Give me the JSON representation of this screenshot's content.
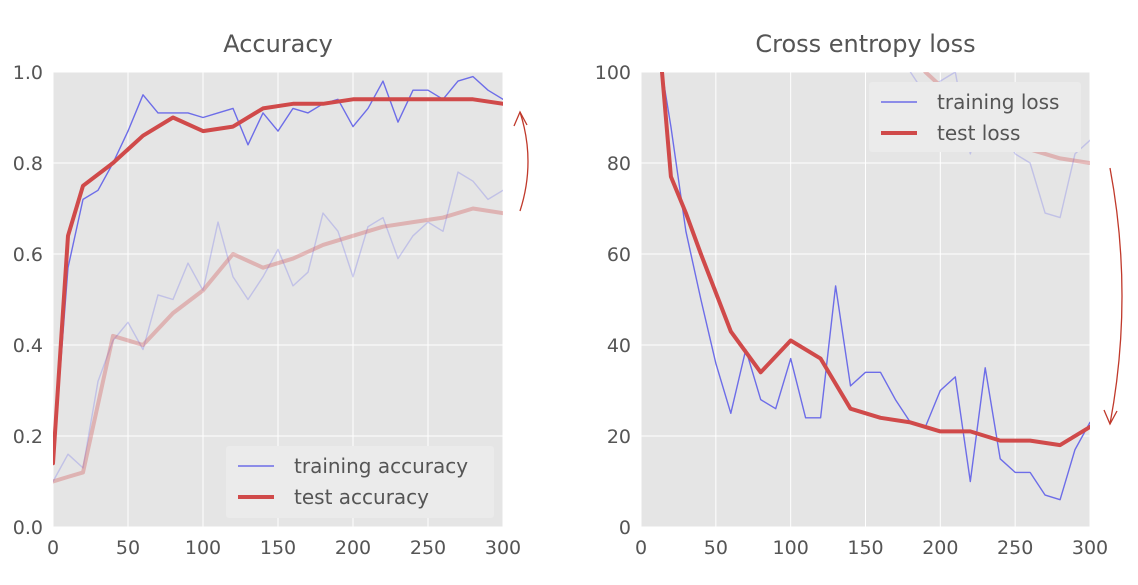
{
  "colors": {
    "plot_bg": "#e5e5e5",
    "grid": "#ffffff",
    "training": "#6d6de8",
    "test": "#d04a4a",
    "arrow": "#c0392b",
    "text": "#555555"
  },
  "chart_data": [
    {
      "type": "line",
      "title": "Accuracy",
      "xlabel": "",
      "ylabel": "",
      "xlim": [
        0,
        300
      ],
      "ylim": [
        0.0,
        1.0
      ],
      "xticks": [
        "0",
        "50",
        "100",
        "150",
        "200",
        "250",
        "300"
      ],
      "yticks": [
        "0.0",
        "0.2",
        "0.4",
        "0.6",
        "0.8",
        "1.0"
      ],
      "xtick_values": [
        0,
        50,
        100,
        150,
        200,
        250,
        300
      ],
      "ytick_values": [
        0.0,
        0.2,
        0.4,
        0.6,
        0.8,
        1.0
      ],
      "grid": true,
      "legend": {
        "position": "lower-right",
        "entries": [
          "training accuracy",
          "test accuracy"
        ]
      },
      "series": [
        {
          "name": "training accuracy",
          "role": "training",
          "faded": false,
          "x": [
            0,
            10,
            20,
            30,
            40,
            50,
            60,
            70,
            80,
            90,
            100,
            110,
            120,
            130,
            140,
            150,
            160,
            170,
            180,
            190,
            200,
            210,
            220,
            230,
            240,
            250,
            260,
            270,
            280,
            290,
            300
          ],
          "y": [
            0.14,
            0.57,
            0.72,
            0.74,
            0.8,
            0.87,
            0.95,
            0.91,
            0.91,
            0.91,
            0.9,
            0.91,
            0.92,
            0.84,
            0.91,
            0.87,
            0.92,
            0.91,
            0.93,
            0.94,
            0.88,
            0.92,
            0.98,
            0.89,
            0.96,
            0.96,
            0.94,
            0.98,
            0.99,
            0.96,
            0.94
          ]
        },
        {
          "name": "test accuracy",
          "role": "test",
          "faded": false,
          "x": [
            0,
            10,
            20,
            40,
            60,
            80,
            100,
            120,
            140,
            160,
            180,
            200,
            220,
            240,
            260,
            280,
            300
          ],
          "y": [
            0.14,
            0.64,
            0.75,
            0.8,
            0.86,
            0.9,
            0.87,
            0.88,
            0.92,
            0.93,
            0.93,
            0.94,
            0.94,
            0.94,
            0.94,
            0.94,
            0.93
          ]
        },
        {
          "name": "",
          "role": "training",
          "faded": true,
          "x": [
            0,
            10,
            20,
            30,
            40,
            50,
            60,
            70,
            80,
            90,
            100,
            110,
            120,
            130,
            140,
            150,
            160,
            170,
            180,
            190,
            200,
            210,
            220,
            230,
            240,
            250,
            260,
            270,
            280,
            290,
            300
          ],
          "y": [
            0.1,
            0.16,
            0.13,
            0.32,
            0.41,
            0.45,
            0.39,
            0.51,
            0.5,
            0.58,
            0.52,
            0.67,
            0.55,
            0.5,
            0.55,
            0.61,
            0.53,
            0.56,
            0.69,
            0.65,
            0.55,
            0.66,
            0.68,
            0.59,
            0.64,
            0.67,
            0.65,
            0.78,
            0.76,
            0.72,
            0.74
          ]
        },
        {
          "name": "",
          "role": "test",
          "faded": true,
          "x": [
            0,
            10,
            20,
            40,
            60,
            80,
            100,
            120,
            140,
            160,
            180,
            200,
            220,
            240,
            260,
            280,
            300
          ],
          "y": [
            0.1,
            0.11,
            0.12,
            0.42,
            0.4,
            0.47,
            0.52,
            0.6,
            0.57,
            0.59,
            0.62,
            0.64,
            0.66,
            0.67,
            0.68,
            0.7,
            0.69
          ]
        }
      ],
      "annotations": [
        {
          "type": "arrow",
          "from": [
            310,
            0.7
          ],
          "to": [
            310,
            0.91
          ],
          "direction": "up"
        }
      ]
    },
    {
      "type": "line",
      "title": "Cross entropy loss",
      "xlabel": "",
      "ylabel": "",
      "xlim": [
        0,
        300
      ],
      "ylim": [
        0,
        100
      ],
      "xticks": [
        "0",
        "50",
        "100",
        "150",
        "200",
        "250",
        "300"
      ],
      "yticks": [
        "0",
        "20",
        "40",
        "60",
        "80",
        "100"
      ],
      "xtick_values": [
        0,
        50,
        100,
        150,
        200,
        250,
        300
      ],
      "ytick_values": [
        0,
        20,
        40,
        60,
        80,
        100
      ],
      "grid": true,
      "legend": {
        "position": "upper-right",
        "entries": [
          "training loss",
          "test loss"
        ]
      },
      "series": [
        {
          "name": "training loss",
          "role": "training",
          "faded": false,
          "x": [
            14,
            20,
            30,
            40,
            50,
            60,
            70,
            80,
            90,
            100,
            110,
            120,
            130,
            140,
            150,
            160,
            170,
            180,
            190,
            200,
            210,
            220,
            230,
            240,
            250,
            260,
            270,
            280,
            290,
            300
          ],
          "y": [
            100,
            88,
            65,
            50,
            36,
            25,
            39,
            28,
            26,
            37,
            24,
            24,
            53,
            31,
            34,
            34,
            28,
            23,
            22,
            30,
            33,
            10,
            35,
            15,
            12,
            12,
            7,
            6,
            17,
            23
          ]
        },
        {
          "name": "test loss",
          "role": "test",
          "faded": false,
          "x": [
            14,
            20,
            30,
            40,
            60,
            80,
            100,
            120,
            140,
            160,
            180,
            200,
            220,
            240,
            260,
            280,
            300
          ],
          "y": [
            100,
            77,
            69,
            60,
            43,
            34,
            41,
            37,
            26,
            24,
            23,
            21,
            21,
            19,
            19,
            18,
            22
          ]
        },
        {
          "name": "",
          "role": "training",
          "faded": true,
          "x": [
            180,
            190,
            200,
            210,
            220,
            230,
            240,
            250,
            260,
            270,
            280,
            290,
            300
          ],
          "y": [
            100,
            95,
            98,
            100,
            82,
            94,
            88,
            82,
            80,
            69,
            68,
            82,
            85
          ]
        },
        {
          "name": "",
          "role": "test",
          "faded": true,
          "x": [
            190,
            200,
            220,
            240,
            260,
            280,
            300
          ],
          "y": [
            100,
            97,
            91,
            86,
            83,
            81,
            80
          ]
        }
      ],
      "annotations": [
        {
          "type": "arrow",
          "from": [
            310,
            82
          ],
          "to": [
            310,
            25
          ],
          "direction": "down"
        }
      ]
    }
  ]
}
